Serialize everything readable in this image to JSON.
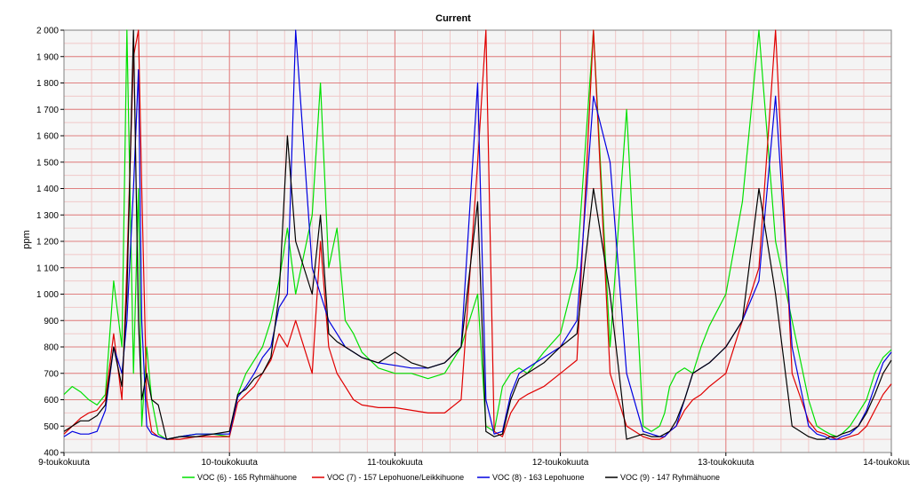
{
  "chart_data": {
    "type": "line",
    "title": "Current",
    "ylabel": "ppm",
    "xlabel": "",
    "ylim": [
      400,
      2000
    ],
    "xlim": [
      0,
      5
    ],
    "grid": true,
    "legend_placement": "bottom",
    "x_ticks": [
      {
        "value": 0,
        "label": "9-toukokuuta"
      },
      {
        "value": 1,
        "label": "10-toukokuuta"
      },
      {
        "value": 2,
        "label": "11-toukokuuta"
      },
      {
        "value": 3,
        "label": "12-toukokuuta"
      },
      {
        "value": 4,
        "label": "13-toukokuuta"
      },
      {
        "value": 5,
        "label": "14-toukokuuta"
      }
    ],
    "y_ticks": [
      {
        "value": 400,
        "label": "400"
      },
      {
        "value": 500,
        "label": "500"
      },
      {
        "value": 600,
        "label": "600"
      },
      {
        "value": 700,
        "label": "700"
      },
      {
        "value": 800,
        "label": "800"
      },
      {
        "value": 900,
        "label": "900"
      },
      {
        "value": 1000,
        "label": "1 000"
      },
      {
        "value": 1100,
        "label": "1 100"
      },
      {
        "value": 1200,
        "label": "1 200"
      },
      {
        "value": 1300,
        "label": "1 300"
      },
      {
        "value": 1400,
        "label": "1 400"
      },
      {
        "value": 1500,
        "label": "1 500"
      },
      {
        "value": 1600,
        "label": "1 600"
      },
      {
        "value": 1700,
        "label": "1 700"
      },
      {
        "value": 1800,
        "label": "1 800"
      },
      {
        "value": 1900,
        "label": "1 900"
      },
      {
        "value": 2000,
        "label": "2 000"
      }
    ],
    "x_unit_note": "x in days since 9-toukokuuta",
    "series": [
      {
        "name": "VOC (6) - 165 Ryhmähuone",
        "color": "#00e000",
        "x": [
          0,
          0.05,
          0.1,
          0.15,
          0.2,
          0.25,
          0.3,
          0.35,
          0.38,
          0.42,
          0.45,
          0.47,
          0.5,
          0.53,
          0.57,
          0.62,
          0.7,
          0.8,
          0.9,
          1.0,
          1.05,
          1.1,
          1.15,
          1.2,
          1.25,
          1.3,
          1.35,
          1.4,
          1.5,
          1.55,
          1.6,
          1.65,
          1.7,
          1.75,
          1.8,
          1.9,
          2.0,
          2.1,
          2.2,
          2.3,
          2.4,
          2.5,
          2.55,
          2.6,
          2.65,
          2.7,
          2.75,
          2.8,
          2.9,
          3.0,
          3.1,
          3.2,
          3.3,
          3.4,
          3.5,
          3.55,
          3.6,
          3.63,
          3.66,
          3.7,
          3.75,
          3.8,
          3.85,
          3.9,
          4.0,
          4.1,
          4.2,
          4.3,
          4.4,
          4.5,
          4.55,
          4.6,
          4.63,
          4.67,
          4.7,
          4.75,
          4.8,
          4.85,
          4.9,
          4.95,
          5.0
        ],
        "y": [
          620,
          650,
          630,
          600,
          580,
          620,
          1050,
          800,
          2000,
          700,
          1400,
          500,
          800,
          600,
          470,
          450,
          460,
          470,
          470,
          460,
          620,
          700,
          750,
          800,
          900,
          1050,
          1250,
          1000,
          1300,
          1800,
          1100,
          1250,
          900,
          850,
          780,
          720,
          700,
          700,
          680,
          700,
          800,
          1000,
          500,
          480,
          650,
          700,
          720,
          700,
          780,
          850,
          1100,
          2000,
          800,
          1700,
          500,
          480,
          500,
          550,
          650,
          700,
          720,
          700,
          800,
          880,
          1000,
          1350,
          2000,
          1200,
          900,
          600,
          500,
          480,
          470,
          460,
          470,
          500,
          550,
          600,
          700,
          760,
          790
        ]
      },
      {
        "name": "VOC (7) - 157 Lepohuone/Leikkihuone",
        "color": "#e00000",
        "x": [
          0,
          0.05,
          0.1,
          0.15,
          0.2,
          0.25,
          0.3,
          0.35,
          0.38,
          0.42,
          0.45,
          0.47,
          0.5,
          0.53,
          0.57,
          0.62,
          0.7,
          0.8,
          0.9,
          1.0,
          1.05,
          1.1,
          1.15,
          1.2,
          1.25,
          1.3,
          1.35,
          1.4,
          1.5,
          1.55,
          1.6,
          1.65,
          1.7,
          1.75,
          1.8,
          1.9,
          2.0,
          2.1,
          2.2,
          2.3,
          2.4,
          2.5,
          2.55,
          2.6,
          2.65,
          2.7,
          2.75,
          2.8,
          2.9,
          3.0,
          3.1,
          3.2,
          3.3,
          3.4,
          3.5,
          3.55,
          3.6,
          3.63,
          3.66,
          3.7,
          3.75,
          3.8,
          3.85,
          3.9,
          4.0,
          4.1,
          4.2,
          4.3,
          4.4,
          4.5,
          4.55,
          4.6,
          4.63,
          4.67,
          4.7,
          4.75,
          4.8,
          4.85,
          4.9,
          4.95,
          5.0
        ],
        "y": [
          470,
          500,
          530,
          550,
          560,
          600,
          850,
          600,
          1100,
          1900,
          2000,
          1400,
          600,
          480,
          460,
          450,
          450,
          460,
          460,
          460,
          590,
          620,
          650,
          700,
          750,
          850,
          800,
          900,
          700,
          1200,
          800,
          700,
          650,
          600,
          580,
          570,
          570,
          560,
          550,
          550,
          600,
          1500,
          2000,
          480,
          460,
          550,
          600,
          620,
          650,
          700,
          750,
          2000,
          700,
          500,
          460,
          450,
          450,
          460,
          480,
          500,
          560,
          600,
          620,
          650,
          700,
          900,
          1100,
          2000,
          700,
          520,
          480,
          470,
          460,
          450,
          450,
          460,
          470,
          500,
          560,
          620,
          660
        ]
      },
      {
        "name": "VOC (8) - 163 Lepohuone",
        "color": "#0000e0",
        "x": [
          0,
          0.05,
          0.1,
          0.15,
          0.2,
          0.25,
          0.3,
          0.35,
          0.38,
          0.42,
          0.45,
          0.47,
          0.5,
          0.53,
          0.57,
          0.62,
          0.7,
          0.8,
          0.9,
          1.0,
          1.05,
          1.1,
          1.15,
          1.2,
          1.25,
          1.3,
          1.35,
          1.4,
          1.5,
          1.55,
          1.6,
          1.65,
          1.7,
          1.75,
          1.8,
          1.9,
          2.0,
          2.1,
          2.2,
          2.3,
          2.4,
          2.5,
          2.55,
          2.6,
          2.65,
          2.7,
          2.75,
          2.8,
          2.9,
          3.0,
          3.1,
          3.2,
          3.3,
          3.4,
          3.5,
          3.55,
          3.6,
          3.63,
          3.66,
          3.7,
          3.75,
          3.8,
          3.85,
          3.9,
          4.0,
          4.1,
          4.2,
          4.3,
          4.4,
          4.5,
          4.55,
          4.6,
          4.63,
          4.67,
          4.7,
          4.75,
          4.8,
          4.85,
          4.9,
          4.95,
          5.0
        ],
        "y": [
          460,
          480,
          470,
          470,
          480,
          560,
          800,
          700,
          900,
          1400,
          1850,
          900,
          500,
          470,
          460,
          450,
          460,
          470,
          470,
          470,
          610,
          650,
          700,
          760,
          800,
          950,
          1000,
          2000,
          1100,
          1000,
          900,
          850,
          800,
          780,
          760,
          740,
          730,
          720,
          720,
          740,
          800,
          1800,
          600,
          470,
          480,
          620,
          700,
          720,
          760,
          800,
          900,
          1750,
          1500,
          700,
          480,
          470,
          460,
          460,
          480,
          500,
          600,
          700,
          720,
          740,
          800,
          900,
          1050,
          1750,
          800,
          500,
          470,
          460,
          450,
          450,
          460,
          470,
          500,
          560,
          650,
          740,
          780
        ]
      },
      {
        "name": "VOC (9) - 147 Ryhmähuone",
        "color": "#000000",
        "x": [
          0,
          0.05,
          0.1,
          0.15,
          0.2,
          0.25,
          0.3,
          0.35,
          0.38,
          0.42,
          0.45,
          0.47,
          0.5,
          0.53,
          0.57,
          0.62,
          0.7,
          0.8,
          0.9,
          1.0,
          1.05,
          1.1,
          1.15,
          1.2,
          1.25,
          1.3,
          1.35,
          1.4,
          1.5,
          1.55,
          1.6,
          1.65,
          1.7,
          1.75,
          1.8,
          1.9,
          2.0,
          2.1,
          2.2,
          2.3,
          2.4,
          2.5,
          2.55,
          2.6,
          2.65,
          2.7,
          2.75,
          2.8,
          2.9,
          3.0,
          3.1,
          3.2,
          3.3,
          3.4,
          3.5,
          3.55,
          3.6,
          3.63,
          3.66,
          3.7,
          3.75,
          3.8,
          3.85,
          3.9,
          4.0,
          4.1,
          4.2,
          4.3,
          4.4,
          4.5,
          4.55,
          4.6,
          4.63,
          4.67,
          4.7,
          4.75,
          4.8,
          4.85,
          4.9,
          4.95,
          5.0
        ],
        "y": [
          480,
          500,
          520,
          520,
          540,
          580,
          800,
          650,
          1000,
          2000,
          900,
          600,
          700,
          600,
          580,
          450,
          460,
          460,
          470,
          480,
          620,
          640,
          680,
          700,
          760,
          1000,
          1600,
          1200,
          1000,
          1300,
          850,
          820,
          800,
          780,
          760,
          740,
          780,
          740,
          720,
          740,
          800,
          1350,
          480,
          460,
          470,
          600,
          680,
          700,
          740,
          800,
          850,
          1400,
          1000,
          450,
          470,
          460,
          460,
          470,
          480,
          520,
          600,
          700,
          720,
          740,
          800,
          900,
          1400,
          1000,
          500,
          460,
          450,
          450,
          460,
          460,
          470,
          480,
          500,
          550,
          620,
          700,
          750
        ]
      }
    ]
  }
}
